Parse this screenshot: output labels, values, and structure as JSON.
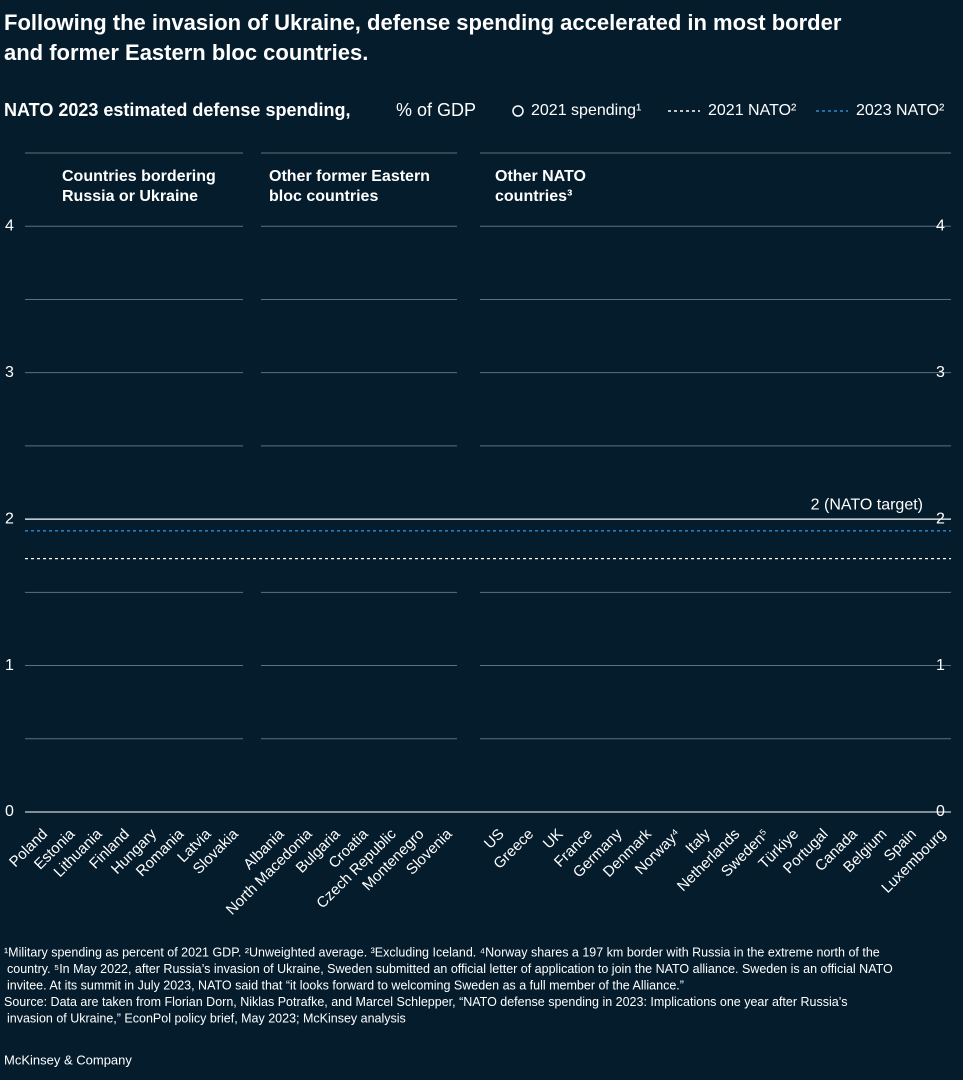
{
  "chart_data": {
    "type": "bar",
    "title": [
      "Following the invasion of Ukraine, defense spending accelerated in most border",
      "and former Eastern bloc countries."
    ],
    "subtitle": "NATO 2023 estimated defense spending,",
    "unit": "% of GDP",
    "legend": [
      {
        "name": "2021 spending¹",
        "style": "circle",
        "color": "#ffffff"
      },
      {
        "name": "2021 NATO²",
        "style": "dash",
        "color": "#ffffff"
      },
      {
        "name": "2023 NATO²",
        "style": "dash",
        "color": "#2b8bd6"
      }
    ],
    "reference_lines": [
      {
        "value": 2,
        "label": "2 (NATO target)",
        "style": "solid",
        "color": "#ffffff"
      },
      {
        "value": 1.92,
        "style": "dash",
        "color": "#2b8bd6"
      },
      {
        "value": 1.73,
        "style": "dash",
        "color": "#ffffff"
      }
    ],
    "ylim": [
      0,
      4.5
    ],
    "yticks": [
      0,
      1,
      2,
      3,
      4
    ],
    "minor_yticks": [
      0.5,
      1,
      1.5,
      2.5,
      3,
      3.5,
      4,
      4.5
    ],
    "grid": true,
    "panels": [
      {
        "title": [
          "Countries bordering",
          "Russia or Ukraine"
        ],
        "categories": [
          "Poland",
          "Estonia",
          "Lithuania",
          "Finland",
          "Hungary",
          "Romania",
          "Latvia",
          "Slovakia"
        ]
      },
      {
        "title": [
          "Other former Eastern",
          "bloc countries"
        ],
        "categories": [
          "Albania",
          "North Macedonia",
          "Bulgaria",
          "Croatia",
          "Czech Republic",
          "Montenegro",
          "Slovenia"
        ]
      },
      {
        "title": [
          "Other NATO",
          "countries³"
        ],
        "categories": [
          "US",
          "Greece",
          "UK",
          "France",
          "Germany",
          "Denmark",
          "Norway⁴",
          "Italy",
          "Netherlands",
          "Sweden⁵",
          "Türkiye",
          "Portugal",
          "Canada",
          "Belgium",
          "Spain",
          "Luxembourg"
        ]
      }
    ],
    "footnotes": [
      "¹Military spending as percent of 2021 GDP. ²Unweighted average. ³Excluding Iceland. ⁴Norway shares a 197 km border with Russia in the extreme north of the",
      "country. ⁵In May 2022, after Russia’s invasion of Ukraine, Sweden submitted an official letter of application to join the NATO alliance. Sweden is an official NATO",
      "invitee. At its summit in July 2023, NATO said that “it looks forward to welcoming Sweden as a full member of the Alliance.”",
      "Source: Data are taken from Florian Dorn, Niklas Potrafke, and Marcel Schlepper, “NATO defense spending in 2023: Implications one year after Russia’s",
      "invasion of Ukraine,” EconPol policy brief, May 2023; McKinsey analysis"
    ],
    "brand": "McKinsey & Company"
  }
}
